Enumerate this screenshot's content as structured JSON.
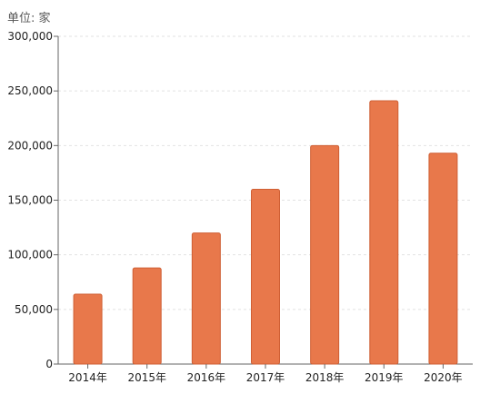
{
  "unit_label": "单位: 家",
  "colors": {
    "bar": "#e8784b",
    "bar_edge": "#cf5f34",
    "grid": "#e2e2e2",
    "axis": "#666666"
  },
  "chart_data": {
    "type": "bar",
    "categories": [
      "2014年",
      "2015年",
      "2016年",
      "2017年",
      "2018年",
      "2019年",
      "2020年"
    ],
    "values": [
      64000,
      88000,
      120000,
      160000,
      200000,
      241000,
      193000
    ],
    "ylim": [
      0,
      300000
    ],
    "yticks": [
      0,
      50000,
      100000,
      150000,
      200000,
      250000,
      300000
    ],
    "ytick_labels": [
      "0",
      "50,000",
      "100,000",
      "150,000",
      "200,000",
      "250,000",
      "300,000"
    ],
    "grid": true,
    "title": "",
    "xlabel": "",
    "ylabel": ""
  }
}
